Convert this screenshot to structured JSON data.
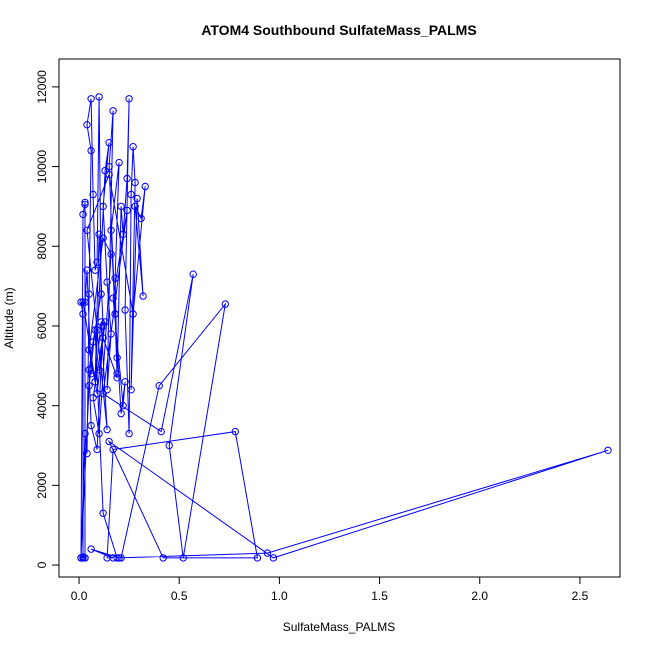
{
  "chart_data": {
    "type": "line",
    "title": "ATOM4 Southbound SulfateMass_PALMS",
    "xlabel": "SulfateMass_PALMS",
    "ylabel": "Altitude (m)",
    "xlim": [
      -0.1,
      2.7
    ],
    "ylim": [
      -300,
      12700
    ],
    "x_ticks": [
      0.0,
      0.5,
      1.0,
      1.5,
      2.0,
      2.5
    ],
    "x_tick_labels": [
      "0.0",
      "0.5",
      "1.0",
      "1.5",
      "2.0",
      "2.5"
    ],
    "y_ticks": [
      0,
      2000,
      4000,
      6000,
      8000,
      10000,
      12000
    ],
    "y_tick_labels": [
      "0",
      "2000",
      "4000",
      "6000",
      "8000",
      "10000",
      "12000"
    ],
    "grid": false,
    "series_color": "#0000ff",
    "marker": "open-circle",
    "series": [
      {
        "x": [
          0.01,
          0.02,
          0.02,
          0.03,
          0.03,
          0.03,
          0.03,
          0.02,
          0.01,
          0.03,
          0.04,
          0.05,
          0.06,
          0.04,
          0.06,
          0.07,
          0.08,
          0.09,
          0.1,
          0.11,
          0.07,
          0.05,
          0.06,
          0.09,
          0.12,
          0.1,
          0.08,
          0.13,
          0.15,
          0.12,
          0.14,
          0.16,
          0.14,
          0.17,
          0.15,
          0.18,
          0.19,
          0.16,
          0.2,
          0.18,
          0.19,
          0.21,
          0.22,
          0.24,
          0.25,
          0.23,
          0.25,
          0.26,
          0.27,
          0.28,
          0.26,
          0.29,
          0.32,
          0.28,
          0.31,
          0.33,
          0.27,
          0.15,
          0.04,
          0.09,
          0.14,
          0.11,
          0.08,
          0.05,
          0.12,
          0.16,
          0.1,
          0.07,
          0.13,
          0.1,
          0.06,
          0.04,
          0.03,
          0.02,
          0.09,
          0.12,
          0.19,
          0.18,
          0.21,
          0.23,
          0.22,
          0.17,
          0.24,
          0.12,
          0.41,
          0.57,
          0.45,
          0.52,
          0.73,
          0.4,
          0.21,
          0.2,
          0.06,
          0.17,
          0.14,
          0.17,
          0.78,
          0.89,
          0.42,
          0.15,
          0.97,
          2.64,
          0.94,
          0.19,
          0.12,
          0.08,
          0.05,
          0.01,
          0.02
        ],
        "y": [
          6600,
          6300,
          180,
          180,
          180,
          9050,
          9100,
          8800,
          180,
          3300,
          2800,
          6800,
          10400,
          11050,
          11700,
          9300,
          7400,
          7600,
          11750,
          6800,
          5600,
          4900,
          3500,
          2900,
          6000,
          8300,
          4600,
          9900,
          10600,
          9000,
          7100,
          5800,
          4400,
          11400,
          10000,
          6300,
          5200,
          8400,
          10100,
          7200,
          4800,
          9000,
          8300,
          9700,
          11700,
          6400,
          3300,
          9300,
          10500,
          9600,
          4400,
          9200,
          6750,
          9000,
          8700,
          9500,
          6300,
          9800,
          8400,
          5900,
          3400,
          6100,
          4600,
          5400,
          8200,
          7800,
          3300,
          4200,
          6100,
          4900,
          4800,
          7400,
          6600,
          6600,
          4300,
          5700,
          4700,
          6300,
          3800,
          4600,
          4000,
          6700,
          8900,
          4300,
          3350,
          7300,
          3000,
          180,
          6550,
          4500,
          180,
          180,
          400,
          180,
          180,
          2900,
          3350,
          180,
          180,
          3100,
          180,
          2880,
          300,
          180,
          1300,
          5900,
          4500,
          180,
          200
        ]
      }
    ]
  }
}
